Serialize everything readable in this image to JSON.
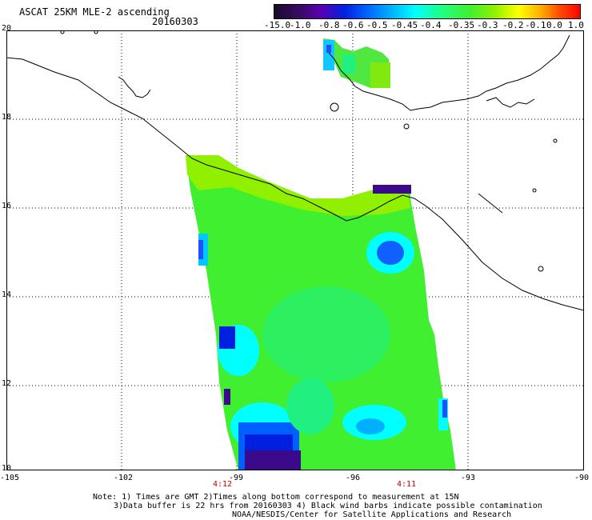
{
  "title": "ASCAT 25KM MLE-2 ascending",
  "date": "20160303",
  "colorbar": {
    "labels": [
      "-15.0",
      "-1.0",
      "-0.8",
      "-0.6",
      "-0.5",
      "-0.45",
      "-0.4",
      "-0.35",
      "-0.3",
      "-0.2",
      "-0.1",
      "0.0",
      "1.0"
    ],
    "colors": [
      "#1a0a2a",
      "#3a0a6a",
      "#5a00b0",
      "#0020e0",
      "#0060ff",
      "#00b0ff",
      "#00ffff",
      "#20ff80",
      "#40f030",
      "#90f000",
      "#ffff00",
      "#ffb000",
      "#ff5000",
      "#ff0000"
    ]
  },
  "axes": {
    "lon_ticks": [
      "-105",
      "-102",
      "-99",
      "-96",
      "-93",
      "-90"
    ],
    "lat_ticks": [
      "20",
      "18",
      "16",
      "14",
      "12",
      "10"
    ],
    "lon_range": [
      -105,
      -90
    ],
    "lat_range": [
      10,
      20
    ],
    "grid": "dotted"
  },
  "times": [
    "4:12",
    "4:11"
  ],
  "notes": [
    "Note: 1) Times are GMT 2)Times along bottom correspond to measurement at 15N",
    "3)Data buffer is 22 hrs from 20160303 4) Black wind barbs indicate possible contamination",
    "NOAA/NESDIS/Center for Satellite Applications and Research"
  ],
  "colors": {
    "coastline": "#000000",
    "dominant_swath": "#40f030"
  }
}
